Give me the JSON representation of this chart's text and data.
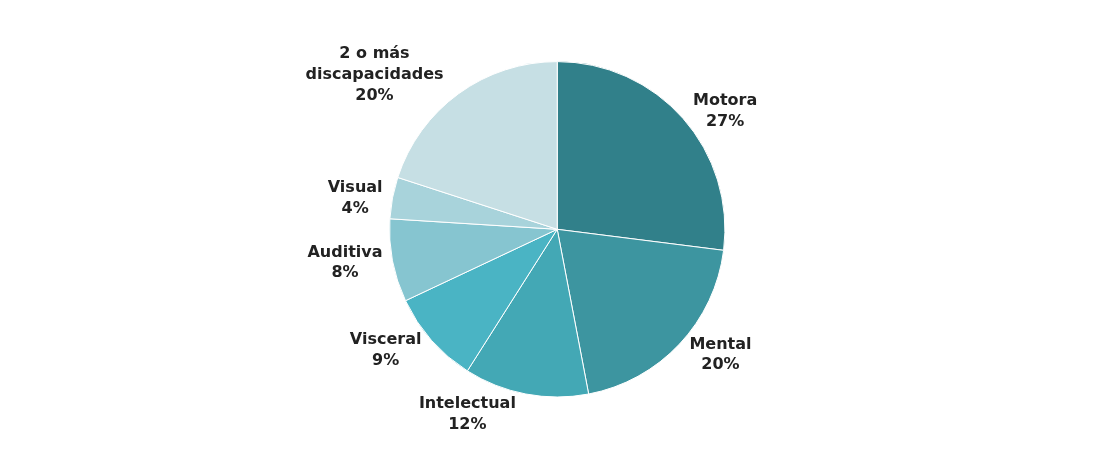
{
  "chart_data": {
    "type": "pie",
    "categories": [
      "Motora",
      "Mental",
      "Intelectual",
      "Visceral",
      "Auditiva",
      "Visual",
      "2 o más discapacidades"
    ],
    "values": [
      27,
      20,
      12,
      9,
      8,
      4,
      20
    ],
    "colors": [
      "#31808a",
      "#3d95a0",
      "#43a8b5",
      "#4ab4c4",
      "#86c5d0",
      "#a8d3db",
      "#c6dfe4"
    ],
    "value_labels": [
      "27%",
      "20%",
      "12%",
      "9%",
      "8%",
      "4%",
      "20%"
    ],
    "legend": false
  }
}
